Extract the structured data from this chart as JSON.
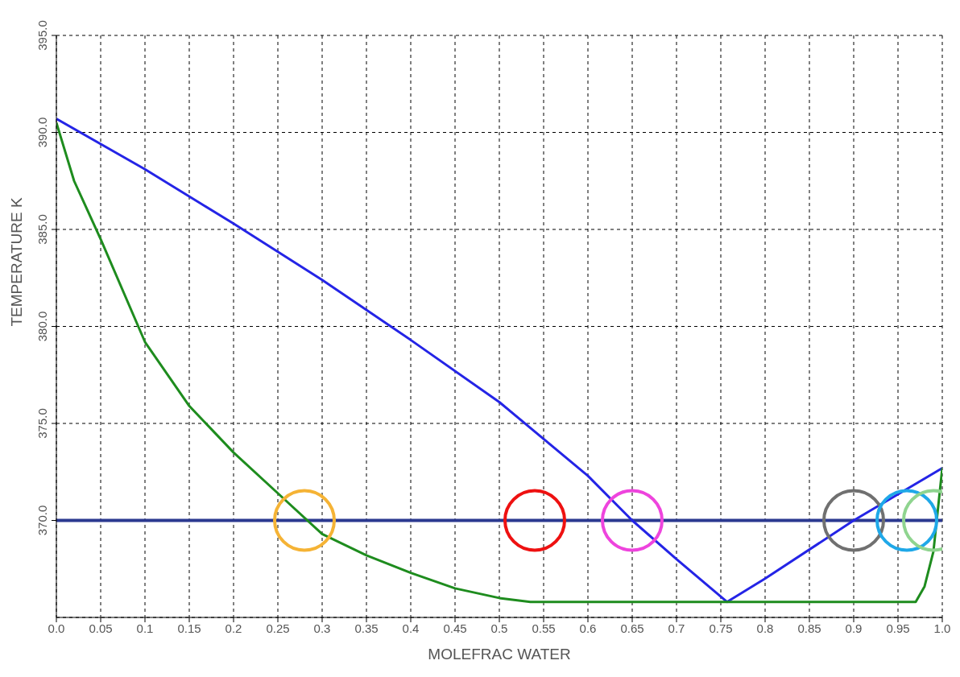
{
  "chart_data": {
    "type": "line",
    "xlabel": "MOLEFRAC WATER",
    "ylabel": "TEMPERATURE K",
    "xlim": [
      0,
      1
    ],
    "xticks": [
      {
        "value": 0,
        "label": "0.0"
      },
      0.05,
      0.1,
      0.15,
      0.2,
      0.25,
      0.3,
      0.35,
      0.4,
      0.45,
      0.5,
      0.55,
      0.6,
      0.65,
      0.7,
      0.75,
      0.8,
      0.85,
      0.9,
      0.95,
      {
        "value": 1,
        "label": "1.0"
      }
    ],
    "ylim": [
      365,
      395
    ],
    "yticks": [
      {
        "value": 370,
        "label": "370.0"
      },
      {
        "value": 375,
        "label": "375.0"
      },
      {
        "value": 380,
        "label": "380.0"
      },
      {
        "value": 385,
        "label": "385.0"
      },
      {
        "value": 390,
        "label": "390.0"
      },
      {
        "value": 395,
        "label": "395.0"
      }
    ],
    "grid": true,
    "series": [
      {
        "color": "#2424e6",
        "x": [
          0,
          0.1,
          0.2,
          0.3,
          0.4,
          0.5,
          0.6,
          0.65,
          0.7,
          0.757,
          0.8,
          0.9,
          1.0
        ],
        "values": [
          390.7,
          388.1,
          385.3,
          382.4,
          379.3,
          376.1,
          372.3,
          370.0,
          368.0,
          365.8,
          367.0,
          370.0,
          372.7
        ]
      },
      {
        "color": "#1e8c1e",
        "x": [
          0,
          0.02,
          0.05,
          0.1,
          0.15,
          0.2,
          0.25,
          0.3,
          0.35,
          0.4,
          0.45,
          0.5,
          0.535,
          0.6,
          0.7,
          0.8,
          0.9,
          0.97,
          0.98,
          0.99,
          1.0
        ],
        "values": [
          390.5,
          387.5,
          384.5,
          379.2,
          375.9,
          373.5,
          371.4,
          369.3,
          368.2,
          367.3,
          366.5,
          366.0,
          365.8,
          365.8,
          365.8,
          365.8,
          365.8,
          365.8,
          366.6,
          368.4,
          372.7
        ]
      },
      {
        "type": "scatter",
        "marker": "circle",
        "x": [
          0.28,
          0.54,
          0.65,
          0.9,
          0.96,
          0.99
        ],
        "values": [
          370,
          370,
          370,
          370,
          370,
          370
        ],
        "colors": [
          "#f5b335",
          "#ee1111",
          "#ee44dd",
          "#707070",
          "#1fa8e8",
          "#8fd48f"
        ]
      }
    ],
    "ref_lines": [
      {
        "axis": "y",
        "value": 370,
        "color": "#2b3990"
      }
    ]
  }
}
